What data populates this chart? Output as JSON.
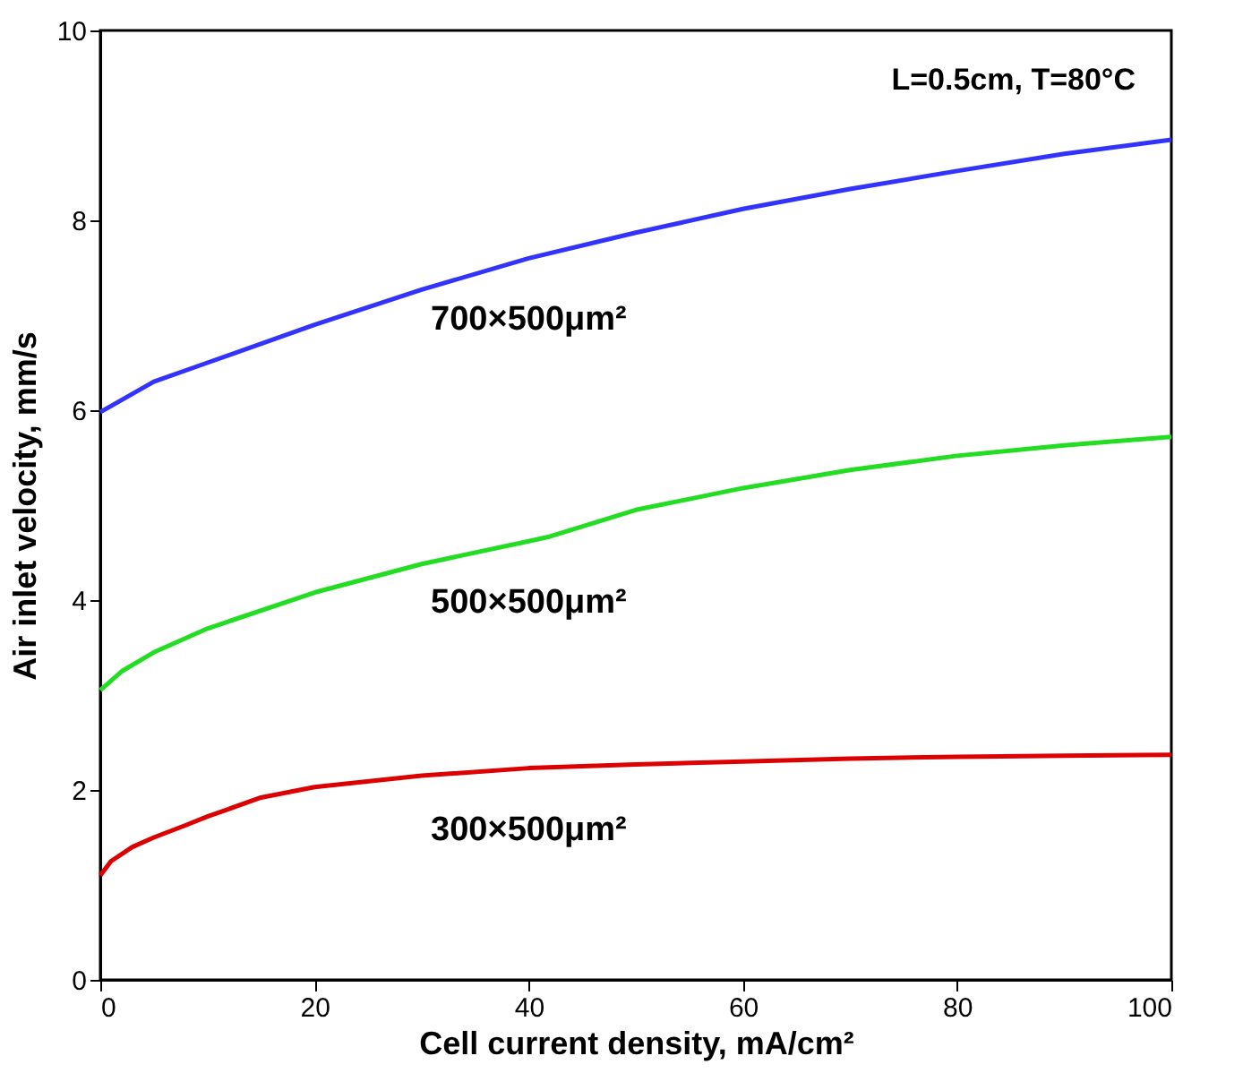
{
  "chart_data": {
    "type": "line",
    "xlabel": "Cell current density, mA/cm²",
    "ylabel": "Air inlet velocity, mm/s",
    "annotations": [
      "L=0.5cm, T=80°C"
    ],
    "xlim": [
      0,
      100
    ],
    "ylim": [
      0,
      10
    ],
    "xticks": [
      0,
      20,
      40,
      60,
      80,
      100
    ],
    "yticks": [
      0,
      2,
      4,
      6,
      8,
      10
    ],
    "marker": "none",
    "line_style": "solid",
    "series": [
      {
        "name": "700×500μm²",
        "color": "#3333ff",
        "x": [
          0,
          5,
          10,
          20,
          30,
          40,
          50,
          60,
          70,
          80,
          90,
          100
        ],
        "values": [
          5.98,
          6.3,
          6.5,
          6.9,
          7.27,
          7.6,
          7.87,
          8.12,
          8.33,
          8.52,
          8.7,
          8.85
        ]
      },
      {
        "name": "500×500μm²",
        "color": "#22dd22",
        "x": [
          0,
          2,
          5,
          10,
          20,
          30,
          40,
          42,
          50,
          60,
          70,
          80,
          90,
          100
        ],
        "values": [
          3.05,
          3.25,
          3.45,
          3.7,
          4.08,
          4.38,
          4.62,
          4.67,
          4.95,
          5.18,
          5.37,
          5.52,
          5.63,
          5.72
        ]
      },
      {
        "name": "300×500μm²",
        "color": "#dd0000",
        "x": [
          0,
          1,
          3,
          5,
          8,
          10,
          15,
          20,
          30,
          40,
          50,
          60,
          70,
          80,
          90,
          100
        ],
        "values": [
          1.1,
          1.25,
          1.4,
          1.5,
          1.63,
          1.72,
          1.92,
          2.03,
          2.15,
          2.23,
          2.27,
          2.3,
          2.33,
          2.35,
          2.36,
          2.37
        ]
      }
    ]
  }
}
